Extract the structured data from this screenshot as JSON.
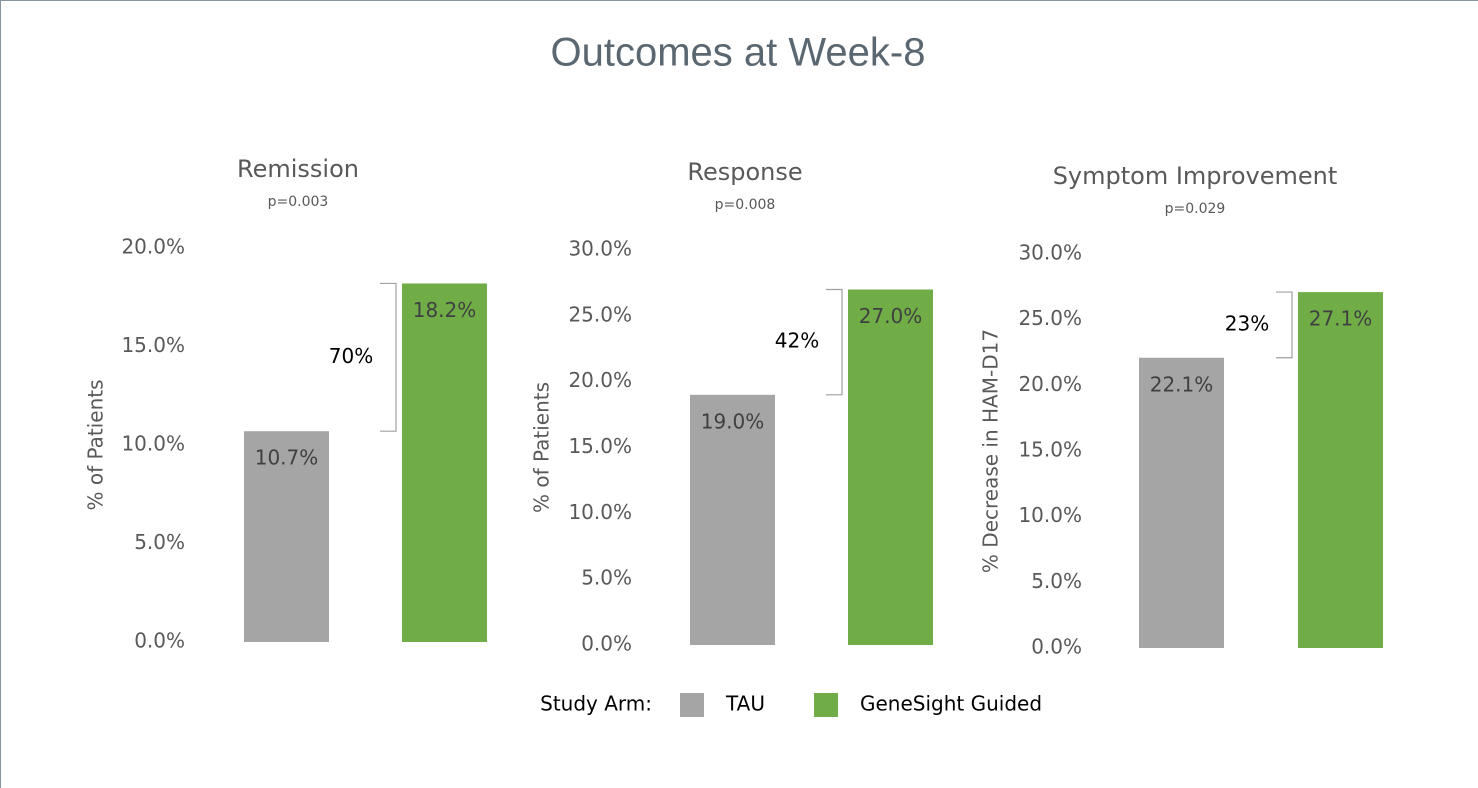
{
  "title": "Outcomes at Week-8",
  "legend_title": "Study Arm:",
  "chart_data": [
    {
      "type": "bar",
      "title": "Remission",
      "subtitle": "p=0.003",
      "ylabel": "% of Patients",
      "categories": [
        null
      ],
      "series": [
        {
          "name": "TAU",
          "color": "#a5a5a5",
          "values": [
            10.7
          ],
          "value_labels": [
            "10.7%"
          ]
        },
        {
          "name": "GeneSight Guided",
          "color": "#70ad47",
          "values": [
            18.2
          ],
          "value_labels": [
            "18.2%"
          ]
        }
      ],
      "annotation": "70%",
      "ylim": [
        0,
        20
      ],
      "yticks": [
        {
          "value": 0,
          "label": "0.0%"
        },
        {
          "value": 5,
          "label": "5.0%"
        },
        {
          "value": 10,
          "label": "10.0%"
        },
        {
          "value": 15,
          "label": "15.0%"
        },
        {
          "value": 20,
          "label": "20.0%"
        }
      ],
      "grid": false
    },
    {
      "type": "bar",
      "title": "Response",
      "subtitle": "p=0.008",
      "ylabel": "% of Patients",
      "categories": [
        null
      ],
      "series": [
        {
          "name": "TAU",
          "color": "#a5a5a5",
          "values": [
            19.0
          ],
          "value_labels": [
            "19.0%"
          ]
        },
        {
          "name": "GeneSight Guided",
          "color": "#70ad47",
          "values": [
            27.0
          ],
          "value_labels": [
            "27.0%"
          ]
        }
      ],
      "annotation": "42%",
      "ylim": [
        0,
        30
      ],
      "yticks": [
        {
          "value": 0,
          "label": "0.0%"
        },
        {
          "value": 5,
          "label": "5.0%"
        },
        {
          "value": 10,
          "label": "10.0%"
        },
        {
          "value": 15,
          "label": "15.0%"
        },
        {
          "value": 20,
          "label": "20.0%"
        },
        {
          "value": 25,
          "label": "25.0%"
        },
        {
          "value": 30,
          "label": "30.0%"
        }
      ],
      "grid": false
    },
    {
      "type": "bar",
      "title": "Symptom Improvement",
      "subtitle": "p=0.029",
      "ylabel": "% Decrease in HAM-D17",
      "categories": [
        null
      ],
      "series": [
        {
          "name": "TAU",
          "color": "#a5a5a5",
          "values": [
            22.1
          ],
          "value_labels": [
            "22.1%"
          ]
        },
        {
          "name": "GeneSight Guided",
          "color": "#70ad47",
          "values": [
            27.1
          ],
          "value_labels": [
            "27.1%"
          ]
        }
      ],
      "annotation": "23%",
      "ylim": [
        0,
        30
      ],
      "yticks": [
        {
          "value": 0,
          "label": "0.0%"
        },
        {
          "value": 5,
          "label": "5.0%"
        },
        {
          "value": 10,
          "label": "10.0%"
        },
        {
          "value": 15,
          "label": "15.0%"
        },
        {
          "value": 20,
          "label": "20.0%"
        },
        {
          "value": 25,
          "label": "25.0%"
        },
        {
          "value": 30,
          "label": "30.0%"
        }
      ],
      "grid": false
    }
  ]
}
